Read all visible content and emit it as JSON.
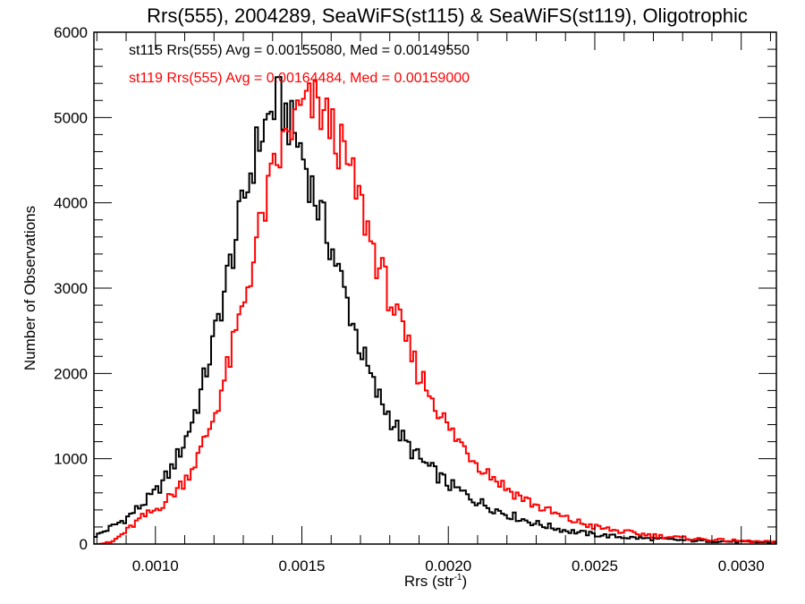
{
  "chart_data": {
    "type": "line",
    "style": "step-histogram",
    "title": "Rrs(555), 2004289, SeaWiFS(st115) & SeaWiFS(st119), Oligotrophic",
    "xlabel": "Rrs (str",
    "xlabel_superscript": "-1",
    "xlabel_suffix": ")",
    "ylabel": "Number of Observations",
    "xlim": [
      0.00079,
      0.00312
    ],
    "ylim": [
      0,
      6000
    ],
    "xticks": [
      0.001,
      0.0015,
      0.002,
      0.0025,
      0.003
    ],
    "xtick_labels": [
      "0.0010",
      "0.0015",
      "0.0020",
      "0.0025",
      "0.0030"
    ],
    "xminor_step": 0.0001,
    "yticks": [
      0,
      1000,
      2000,
      3000,
      4000,
      5000,
      6000
    ],
    "ytick_labels": [
      "0",
      "1000",
      "2000",
      "3000",
      "4000",
      "5000",
      "6000"
    ],
    "yminor_step": 200,
    "grid": false,
    "bin_width": 1e-05,
    "legend_position": "top-left",
    "legend": [
      {
        "text": "st115 Rrs(555) Avg = 0.00155080, Med = 0.00149550",
        "color": "#000000"
      },
      {
        "text": "st119 Rrs(555) Avg = 0.00164484, Med = 0.00159000",
        "color": "#ff0000"
      }
    ],
    "series": [
      {
        "name": "st115",
        "color": "#000000",
        "x": [
          0.0008,
          0.00085,
          0.0009,
          0.00095,
          0.001,
          0.00105,
          0.0011,
          0.00115,
          0.0012,
          0.00125,
          0.0013,
          0.00135,
          0.0014,
          0.00142,
          0.00145,
          0.0015,
          0.00155,
          0.0016,
          0.00165,
          0.0017,
          0.00175,
          0.0018,
          0.00185,
          0.0019,
          0.00195,
          0.002,
          0.0021,
          0.0022,
          0.0023,
          0.0024,
          0.0025,
          0.0026,
          0.0027,
          0.0028,
          0.0029,
          0.003,
          0.0031
        ],
        "values": [
          100,
          200,
          300,
          450,
          600,
          850,
          1200,
          1700,
          2400,
          3200,
          4000,
          4700,
          5100,
          5200,
          5000,
          4600,
          4000,
          3500,
          2900,
          2300,
          1800,
          1500,
          1200,
          1000,
          850,
          700,
          500,
          350,
          240,
          160,
          110,
          80,
          60,
          45,
          35,
          25,
          20
        ]
      },
      {
        "name": "st119",
        "color": "#ff0000",
        "x": [
          0.0008,
          0.00085,
          0.0009,
          0.00095,
          0.001,
          0.00105,
          0.0011,
          0.00115,
          0.0012,
          0.00125,
          0.0013,
          0.00135,
          0.0014,
          0.00145,
          0.0015,
          0.00155,
          0.0016,
          0.00165,
          0.0017,
          0.00175,
          0.0018,
          0.00185,
          0.0019,
          0.00195,
          0.002,
          0.0021,
          0.0022,
          0.0023,
          0.0024,
          0.0025,
          0.0026,
          0.0027,
          0.0028,
          0.0029,
          0.003,
          0.0031
        ],
        "values": [
          0,
          20,
          150,
          300,
          400,
          550,
          750,
          1050,
          1500,
          2100,
          2800,
          3600,
          4300,
          4800,
          5100,
          5150,
          4900,
          4500,
          4000,
          3400,
          2900,
          2400,
          2000,
          1700,
          1350,
          950,
          650,
          450,
          300,
          200,
          140,
          100,
          70,
          50,
          35,
          25
        ]
      }
    ]
  }
}
